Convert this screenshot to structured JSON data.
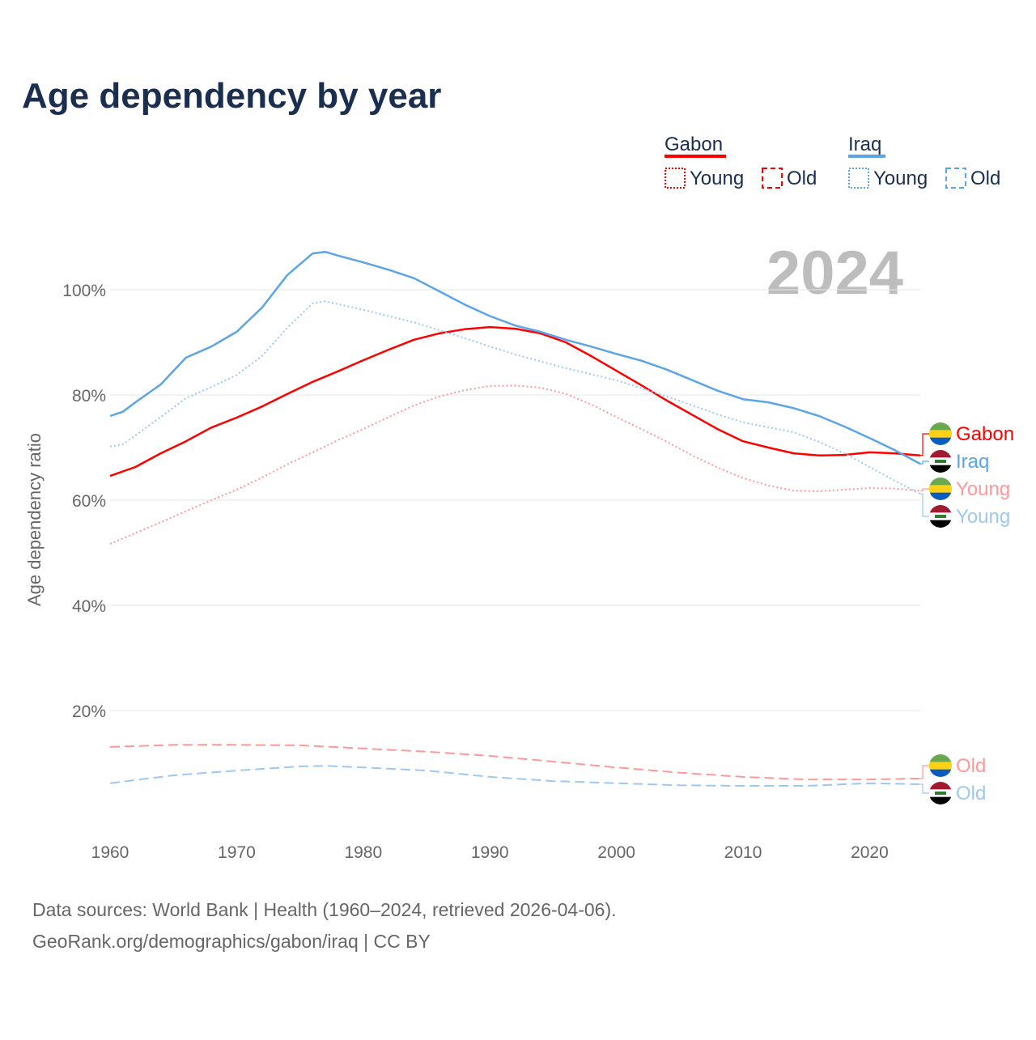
{
  "chart_data": {
    "type": "line",
    "title": "Age dependency by year",
    "ylabel": "Age dependency ratio",
    "xlabel": "",
    "year_display": "2024",
    "xlim": [
      1960,
      2024
    ],
    "ylim": [
      0,
      110
    ],
    "x_ticks": [
      "1960",
      "1970",
      "1980",
      "1990",
      "2000",
      "2010",
      "2020"
    ],
    "y_ticks": [
      "20%",
      "40%",
      "60%",
      "80%",
      "100%"
    ],
    "grid": true,
    "legend": {
      "placement": "top-right",
      "groups": [
        {
          "name": "Gabon",
          "color": "#ff0000",
          "items": [
            "Young",
            "Old"
          ]
        },
        {
          "name": "Iraq",
          "color": "#5ba4e8",
          "items": [
            "Young",
            "Old"
          ]
        }
      ]
    },
    "series": [
      {
        "name": "Gabon",
        "label": "Gabon",
        "country": "gabon",
        "style": "solid",
        "color": "#ff0000",
        "x": [
          1960,
          1962,
          1964,
          1966,
          1968,
          1970,
          1972,
          1974,
          1976,
          1978,
          1980,
          1982,
          1984,
          1986,
          1988,
          1990,
          1992,
          1994,
          1996,
          1998,
          2000,
          2002,
          2004,
          2006,
          2008,
          2010,
          2012,
          2014,
          2016,
          2018,
          2020,
          2022,
          2024
        ],
        "y": [
          64.6,
          66.3,
          68.9,
          71.2,
          73.8,
          75.7,
          77.8,
          80.2,
          82.5,
          84.5,
          86.6,
          88.6,
          90.5,
          91.7,
          92.5,
          92.9,
          92.6,
          91.7,
          90.0,
          87.4,
          84.6,
          81.8,
          78.9,
          76.2,
          73.5,
          71.2,
          70.0,
          68.9,
          68.5,
          68.6,
          69.1,
          68.9,
          68.5
        ]
      },
      {
        "name": "Iraq",
        "label": "Iraq",
        "country": "iraq",
        "style": "solid",
        "color": "#5ba4e8",
        "x": [
          1960,
          1961,
          1962,
          1964,
          1966,
          1968,
          1970,
          1972,
          1974,
          1976,
          1977,
          1978,
          1980,
          1982,
          1984,
          1986,
          1988,
          1990,
          1992,
          1994,
          1996,
          1998,
          2000,
          2002,
          2004,
          2006,
          2008,
          2010,
          2012,
          2014,
          2016,
          2018,
          2020,
          2022,
          2024
        ],
        "y": [
          76.0,
          76.8,
          78.6,
          82.0,
          87.1,
          89.2,
          92.0,
          96.6,
          102.8,
          106.9,
          107.2,
          106.5,
          105.2,
          103.8,
          102.2,
          99.7,
          97.2,
          95.0,
          93.2,
          92.0,
          90.5,
          89.2,
          87.8,
          86.5,
          84.8,
          82.8,
          80.8,
          79.2,
          78.6,
          77.5,
          76.0,
          74.0,
          71.8,
          69.5,
          66.9
        ]
      },
      {
        "name": "Gabon Young",
        "label": "Young",
        "country": "gabon",
        "style": "dotted",
        "color": "#ff9999",
        "x": [
          1960,
          1964,
          1968,
          1970,
          1972,
          1974,
          1976,
          1978,
          1980,
          1982,
          1984,
          1986,
          1988,
          1990,
          1992,
          1994,
          1996,
          1998,
          2000,
          2002,
          2004,
          2006,
          2008,
          2010,
          2012,
          2014,
          2016,
          2018,
          2020,
          2022,
          2024
        ],
        "y": [
          51.7,
          55.8,
          60.0,
          62.0,
          64.3,
          66.8,
          69.1,
          71.4,
          73.5,
          75.8,
          78.0,
          79.7,
          80.9,
          81.7,
          81.8,
          81.4,
          80.2,
          78.2,
          75.8,
          73.5,
          71.1,
          68.5,
          66.2,
          64.2,
          62.8,
          61.8,
          61.7,
          62.0,
          62.3,
          62.2,
          61.8
        ]
      },
      {
        "name": "Iraq Young",
        "label": "Young",
        "country": "iraq",
        "style": "dotted",
        "color": "#9ec8f0",
        "x": [
          1960,
          1961,
          1962,
          1964,
          1966,
          1968,
          1970,
          1972,
          1974,
          1976,
          1977,
          1980,
          1984,
          1988,
          1990,
          1992,
          1996,
          2000,
          2004,
          2008,
          2010,
          2014,
          2016,
          2018,
          2020,
          2022,
          2024
        ],
        "y": [
          70.2,
          70.6,
          72.3,
          75.8,
          79.4,
          81.5,
          83.8,
          87.4,
          92.8,
          97.4,
          97.8,
          96.2,
          93.8,
          90.8,
          89.2,
          87.7,
          85.1,
          82.8,
          79.7,
          76.3,
          74.8,
          72.9,
          71.1,
          68.9,
          66.3,
          63.7,
          61.2
        ]
      },
      {
        "name": "Gabon Old",
        "label": "Old",
        "country": "gabon",
        "style": "dashed",
        "color": "#ff9999",
        "x": [
          1960,
          1965,
          1970,
          1975,
          1980,
          1985,
          1990,
          1995,
          2000,
          2005,
          2010,
          2015,
          2020,
          2024
        ],
        "y": [
          13.1,
          13.5,
          13.5,
          13.4,
          12.8,
          12.2,
          11.4,
          10.3,
          9.2,
          8.2,
          7.4,
          6.9,
          6.9,
          7.1
        ]
      },
      {
        "name": "Iraq Old",
        "label": "Old",
        "country": "iraq",
        "style": "dashed",
        "color": "#9ec8f0",
        "x": [
          1960,
          1965,
          1970,
          1975,
          1977,
          1980,
          1985,
          1990,
          1995,
          2000,
          2005,
          2010,
          2015,
          2020,
          2024
        ],
        "y": [
          6.2,
          7.7,
          8.6,
          9.4,
          9.5,
          9.2,
          8.6,
          7.4,
          6.6,
          6.2,
          5.8,
          5.7,
          5.7,
          6.2,
          6.0
        ]
      }
    ]
  },
  "footer": {
    "line1": "Data sources: World Bank | Health (1960–2024, retrieved 2026-04-06).",
    "line2": "GeoRank.org/demographics/gabon/iraq | CC BY"
  }
}
